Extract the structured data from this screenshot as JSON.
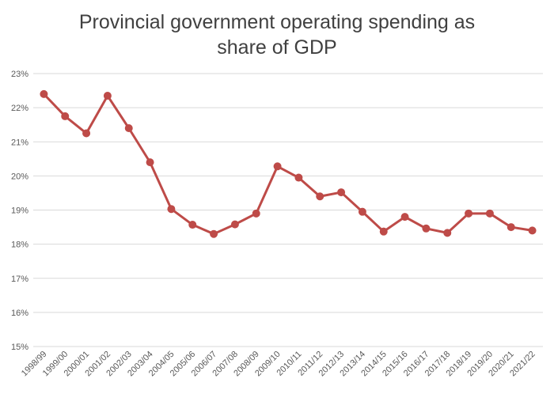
{
  "chart_data": {
    "type": "line",
    "title_lines": [
      "Provincial government operating spending as",
      "share of GDP"
    ],
    "categories": [
      "1998/99",
      "1999/00",
      "2000/01",
      "2001/02",
      "2002/03",
      "2003/04",
      "2004/05",
      "2005/06",
      "2006/07",
      "2007/08",
      "2008/09",
      "2009/10",
      "2010/11",
      "2011/12",
      "2012/13",
      "2013/14",
      "2014/15",
      "2015/16",
      "2016/17",
      "2017/18",
      "2018/19",
      "2019/20",
      "2020/21",
      "2021/22"
    ],
    "series": [
      {
        "values": [
          22.4,
          21.75,
          21.25,
          22.35,
          21.4,
          20.4,
          19.03,
          18.57,
          18.3,
          18.58,
          18.9,
          20.28,
          19.95,
          19.4,
          19.52,
          18.95,
          18.37,
          18.8,
          18.46,
          18.33,
          18.9,
          18.9,
          18.5,
          18.4
        ],
        "color": "#be4b48"
      }
    ],
    "y_ticks": [
      "15%",
      "16%",
      "17%",
      "18%",
      "19%",
      "20%",
      "21%",
      "22%",
      "23%"
    ],
    "ylim": [
      15,
      23
    ],
    "grid": true,
    "legend": "none"
  }
}
